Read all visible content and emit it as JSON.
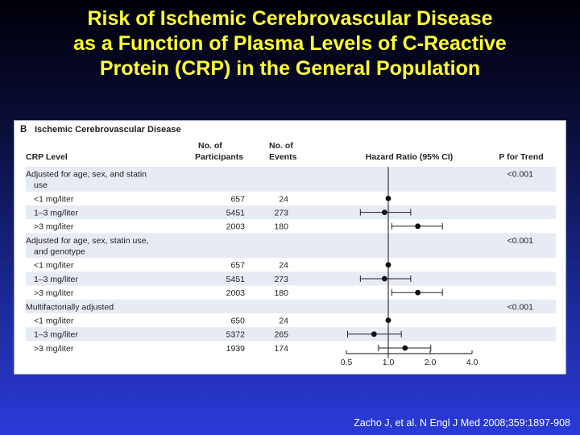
{
  "slide": {
    "title_lines": [
      "Risk of Ischemic Cerebrovascular Disease",
      "as a Function of Plasma Levels of C-Reactive",
      "Protein (CRP) in the General Population"
    ],
    "citation": "Zacho J, et al. N Engl J Med 2008;359:1897-908"
  },
  "chart_data": {
    "type": "forest",
    "panel_label": "B",
    "title": "Ischemic Cerebrovascular Disease",
    "columns": {
      "crp_level": "CRP Level",
      "participants": [
        "No. of",
        "Participants"
      ],
      "events": [
        "No. of",
        "Events"
      ],
      "hazard_ratio": "Hazard Ratio (95% CI)",
      "p_trend": "P for Trend"
    },
    "x_axis": {
      "scale": "log",
      "ticks": [
        0.5,
        1.0,
        2.0,
        4.0
      ],
      "tick_labels": [
        "0.5",
        "1.0",
        "2.0",
        "4.0"
      ],
      "range": [
        0.5,
        4.0
      ],
      "reference": 1.0
    },
    "groups": [
      {
        "label_lines": [
          "Adjusted for age, sex, and statin",
          "use"
        ],
        "p_trend": "<0.001",
        "rows": [
          {
            "level": "<1 mg/liter",
            "participants": "657",
            "events": "24",
            "hr": 1.0,
            "ci": null
          },
          {
            "level": "1–3 mg/liter",
            "participants": "5451",
            "events": "273",
            "hr": 0.94,
            "ci": [
              0.63,
              1.45
            ]
          },
          {
            "level": ">3 mg/liter",
            "participants": "2003",
            "events": "180",
            "hr": 1.63,
            "ci": [
              1.06,
              2.45
            ]
          }
        ]
      },
      {
        "label_lines": [
          "Adjusted for age, sex, statin use,",
          "and genotype"
        ],
        "p_trend": "<0.001",
        "rows": [
          {
            "level": "<1 mg/liter",
            "participants": "657",
            "events": "24",
            "hr": 1.0,
            "ci": null
          },
          {
            "level": "1–3 mg/liter",
            "participants": "5451",
            "events": "273",
            "hr": 0.94,
            "ci": [
              0.63,
              1.45
            ]
          },
          {
            "level": ">3 mg/liter",
            "participants": "2003",
            "events": "180",
            "hr": 1.63,
            "ci": [
              1.06,
              2.45
            ]
          }
        ]
      },
      {
        "label_lines": [
          "Multifactorially adjusted"
        ],
        "p_trend": "<0.001",
        "rows": [
          {
            "level": "<1 mg/liter",
            "participants": "650",
            "events": "24",
            "hr": 1.0,
            "ci": null
          },
          {
            "level": "1–3 mg/liter",
            "participants": "5372",
            "events": "265",
            "hr": 0.79,
            "ci": [
              0.51,
              1.24
            ]
          },
          {
            "level": ">3 mg/liter",
            "participants": "1939",
            "events": "174",
            "hr": 1.32,
            "ci": [
              0.85,
              2.02
            ]
          }
        ]
      }
    ],
    "colors": {
      "band": "#e6ebf4",
      "marker": "#111111",
      "text": "#222222"
    }
  }
}
